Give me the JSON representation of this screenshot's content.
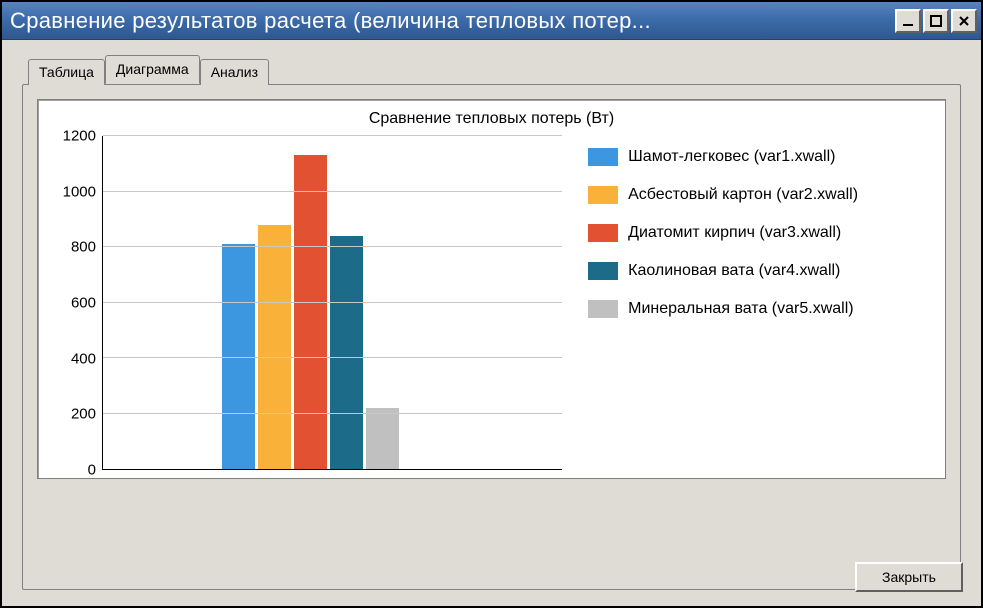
{
  "window": {
    "title": "Сравнение результатов расчета (величина тепловых потер..."
  },
  "tabs": [
    {
      "label": "Таблица",
      "active": false
    },
    {
      "label": "Диаграмма",
      "active": true
    },
    {
      "label": "Анализ",
      "active": false
    }
  ],
  "chart": {
    "type": "bar",
    "title": "Сравнение тепловых потерь (Вт)",
    "title_fontsize": 16,
    "background_color": "#ffffff",
    "grid_color": "#c8c8c8",
    "axis_color": "#000000",
    "ylim": [
      0,
      1200
    ],
    "ytick_step": 200,
    "yticks": [
      0,
      200,
      400,
      600,
      800,
      1000,
      1200
    ],
    "bar_width_pct": 7.2,
    "bar_gap_pct": 0.6,
    "group_left_pct": 26,
    "series": [
      {
        "label": "Шамот-легковес (var1.xwall)",
        "value": 810,
        "color": "#3c96e0"
      },
      {
        "label": "Асбестовый картон (var2.xwall)",
        "value": 880,
        "color": "#f9b13a"
      },
      {
        "label": "Диатомит кирпич (var3.xwall)",
        "value": 1130,
        "color": "#e25131"
      },
      {
        "label": "Каолиновая вата (var4.xwall)",
        "value": 840,
        "color": "#1c6b88"
      },
      {
        "label": "Минеральная вата (var5.xwall)",
        "value": 220,
        "color": "#c0c0c0"
      }
    ]
  },
  "buttons": {
    "close_label": "Закрыть"
  }
}
